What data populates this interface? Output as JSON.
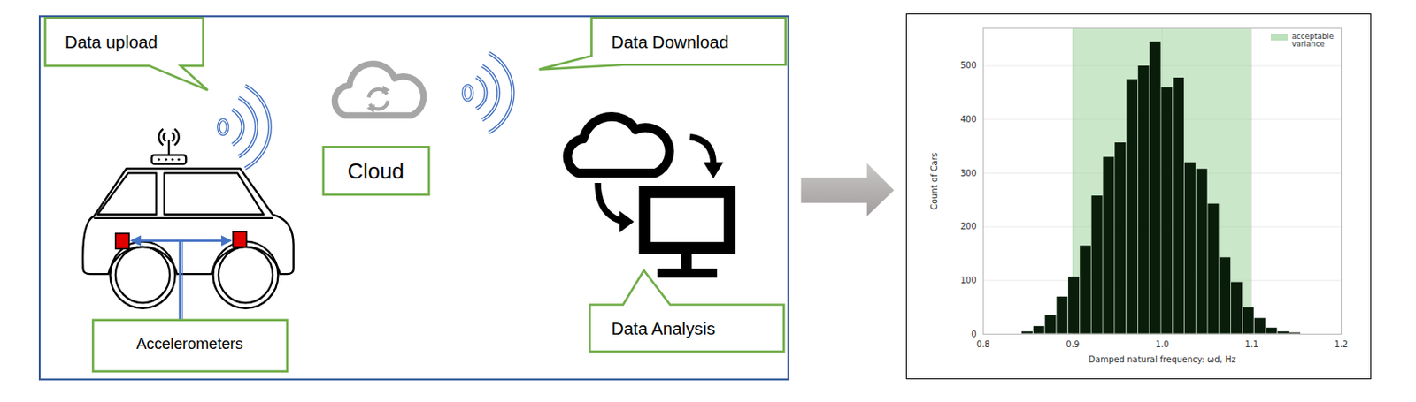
{
  "diagram": {
    "nodes": [
      {
        "label": "Data upload"
      },
      {
        "label": "Data Download"
      },
      {
        "label": "Cloud"
      },
      {
        "label": "Accelerometers"
      },
      {
        "label": "Data Analysis"
      }
    ]
  },
  "chart_data": {
    "type": "histogram",
    "bins": [
      0.843,
      0.856,
      0.869,
      0.882,
      0.895,
      0.908,
      0.921,
      0.934,
      0.947,
      0.96,
      0.973,
      0.986,
      0.999,
      1.012,
      1.025,
      1.038,
      1.051,
      1.064,
      1.077,
      1.09,
      1.103,
      1.116,
      1.129,
      1.142,
      1.155
    ],
    "values": [
      5,
      15,
      35,
      70,
      107,
      165,
      258,
      330,
      357,
      475,
      500,
      545,
      460,
      478,
      320,
      308,
      243,
      143,
      97,
      50,
      30,
      12,
      5,
      3
    ],
    "color": "#0a1c0a",
    "xlabel": "Damped natural frequency: ωd, Hz",
    "ylabel": "Count of Cars",
    "xlim": [
      0.8,
      1.2
    ],
    "xticks": [
      0.8,
      0.9,
      {
        "value": 1,
        "label": "1.0"
      },
      1.1,
      1.2
    ],
    "ylim": [
      0,
      570
    ],
    "yticks": [
      0,
      100,
      200,
      300,
      400,
      500
    ],
    "grid": true,
    "legend": "upper right",
    "band": {
      "name": "acceptable variance",
      "x": [
        0.9,
        1.1
      ],
      "color": "#9fd49f"
    }
  }
}
